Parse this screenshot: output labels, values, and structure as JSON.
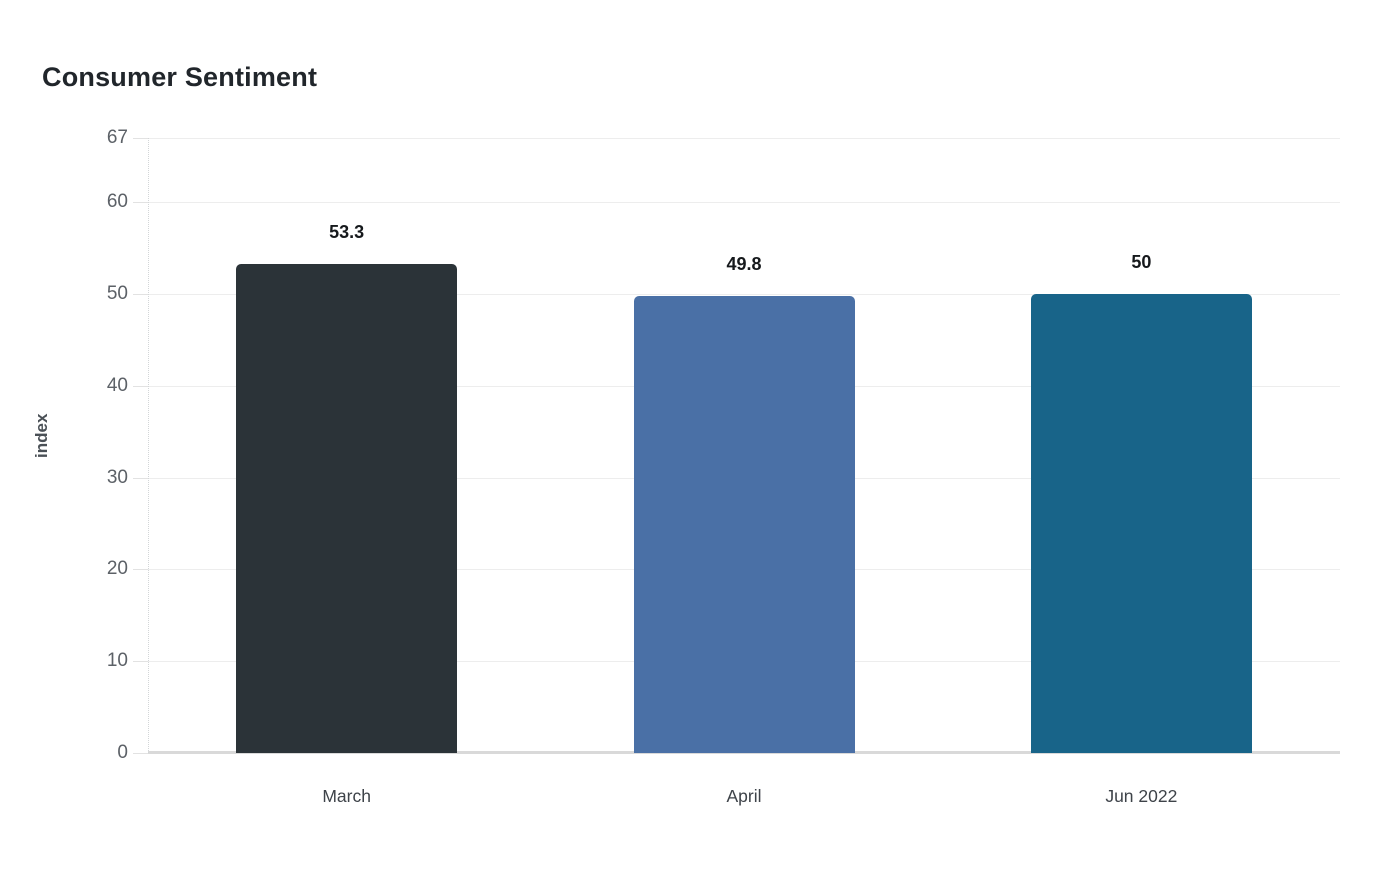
{
  "page": {
    "background": "#ffffff"
  },
  "chart": {
    "title": "Consumer Sentiment"
  },
  "chart_data": {
    "type": "bar",
    "title": "Consumer Sentiment",
    "categories": [
      "March",
      "April",
      "Jun 2022"
    ],
    "values": [
      53.3,
      49.8,
      50
    ],
    "bar_labels": [
      "53.3",
      "49.8",
      "50"
    ],
    "bar_colors": [
      "#2b3338",
      "#4a70a6",
      "#186489"
    ],
    "xlabel": "",
    "ylabel": "index",
    "ylim": [
      0,
      67
    ],
    "yticks": [
      0,
      10,
      20,
      30,
      40,
      50,
      60,
      67
    ],
    "grid": true,
    "legend": false,
    "style": {
      "gridline_color": "#ededed",
      "baseline_color": "#d9d9d9",
      "tick_label_color": "#5c6167",
      "axis_title_color": "#4a5056",
      "category_label_color": "#3e4349",
      "value_label_color": "#16191c",
      "title_color": "#21262b"
    }
  }
}
